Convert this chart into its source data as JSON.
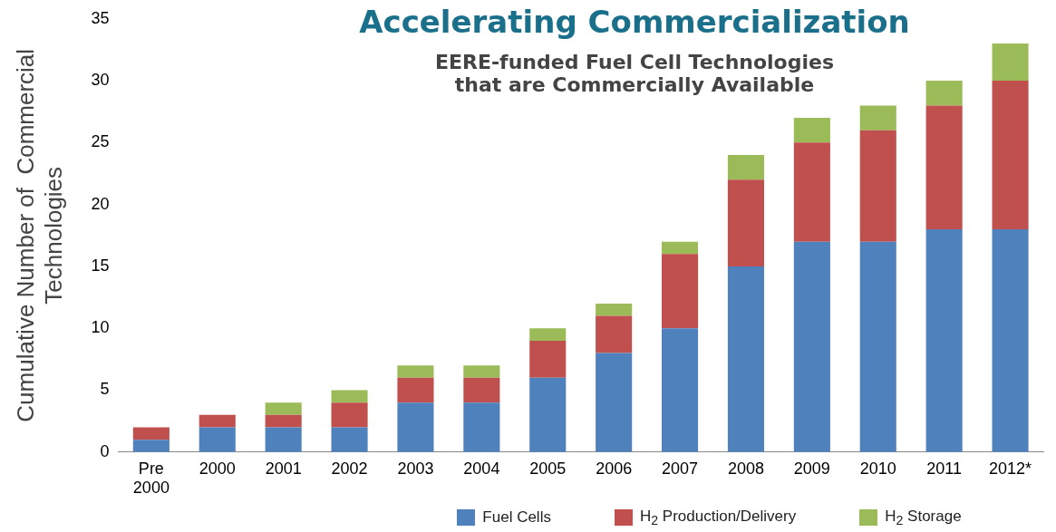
{
  "chart_data": {
    "type": "bar",
    "stacked": true,
    "title": "Accelerating Commercialization",
    "subtitle": "EERE-funded Fuel Cell Technologies\nthat are Commercially Available",
    "ylabel": "Cumulative Number of  Commercial\nTechnologies",
    "categories": [
      "Pre 2000",
      "2000",
      "2001",
      "2002",
      "2003",
      "2004",
      "2005",
      "2006",
      "2007",
      "2008",
      "2009",
      "2010",
      "2011",
      "2012*"
    ],
    "series": [
      {
        "name": "Fuel Cells",
        "color": "#4f81bd",
        "values": [
          1,
          2,
          2,
          2,
          4,
          4,
          6,
          8,
          10,
          15,
          17,
          17,
          18,
          18
        ]
      },
      {
        "name": "H$_{2}$ Production/Delivery",
        "color": "#c0504d",
        "values": [
          1,
          1,
          1,
          2,
          2,
          2,
          3,
          3,
          6,
          7,
          8,
          9,
          10,
          12
        ]
      },
      {
        "name": "H$_{2}$ Storage",
        "color": "#9bbb59",
        "values": [
          0,
          0,
          1,
          1,
          1,
          1,
          1,
          1,
          1,
          2,
          2,
          2,
          2,
          3
        ]
      }
    ],
    "ylim": [
      0,
      35
    ],
    "yticks": [
      0,
      5,
      10,
      15,
      20,
      25,
      30,
      35
    ],
    "grid": false,
    "legend": "bottom"
  }
}
